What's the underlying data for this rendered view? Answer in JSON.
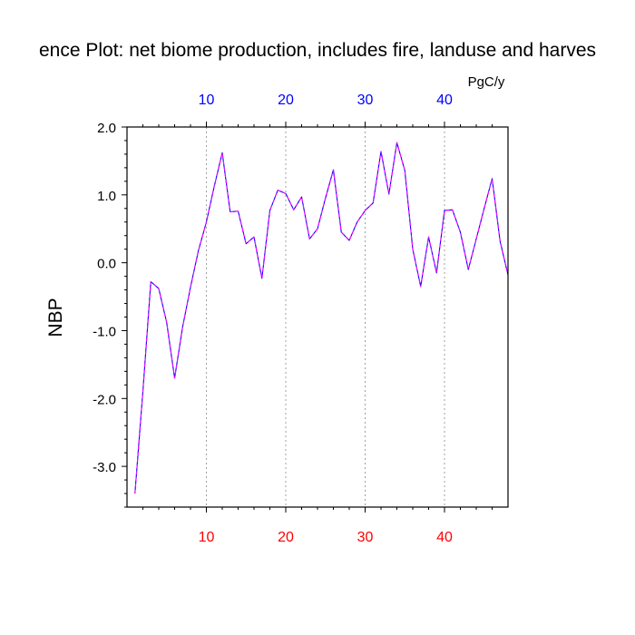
{
  "chart_data": {
    "type": "line",
    "title": "ence Plot: net biome production, includes fire, landuse and harves",
    "units_label": "PgC/y",
    "ylabel": "NBP",
    "xlabel": "",
    "xlim": [
      0,
      48
    ],
    "ylim": [
      -3.6,
      2.0
    ],
    "x_ticks": [
      10,
      20,
      30,
      40
    ],
    "x_tick_labels": [
      "10",
      "20",
      "30",
      "40"
    ],
    "x_top_ticks": [
      10,
      20,
      30,
      40
    ],
    "x_top_tick_labels": [
      "10",
      "20",
      "30",
      "40"
    ],
    "y_ticks": [
      2.0,
      1.0,
      0.0,
      -1.0,
      -2.0,
      -3.0
    ],
    "y_tick_labels": [
      "2.0",
      "1.0",
      "0.0",
      "-1.0",
      "-2.0",
      "-3.0"
    ],
    "grid": "vertical dotted at major x ticks",
    "colors": {
      "bottom_tick_labels": "#ff0000",
      "top_tick_labels": "#0000ff",
      "series_line": "#0000ff",
      "series_dash": "#ff00ff",
      "grid": "#a0a0a0",
      "frame": "#000000"
    },
    "series": [
      {
        "x": [
          1,
          2,
          3,
          4,
          5,
          6,
          7,
          8,
          9,
          10,
          11,
          12,
          13,
          14,
          15,
          16,
          17,
          18,
          19,
          20,
          21,
          22,
          23,
          24,
          25,
          26,
          27,
          28,
          29,
          30,
          31,
          32,
          33,
          34,
          35,
          36,
          37,
          38,
          39,
          40,
          41,
          42,
          43,
          44,
          45,
          46,
          47,
          48
        ],
        "values": [
          -3.4,
          -1.9,
          -0.28,
          -0.38,
          -0.88,
          -1.7,
          -0.95,
          -0.36,
          0.18,
          0.6,
          1.13,
          1.62,
          0.75,
          0.76,
          0.28,
          0.38,
          -0.23,
          0.77,
          1.07,
          1.02,
          0.78,
          0.97,
          0.35,
          0.5,
          0.95,
          1.37,
          0.45,
          0.33,
          0.6,
          0.77,
          0.88,
          1.64,
          1.01,
          1.77,
          1.36,
          0.2,
          -0.35,
          0.38,
          -0.15,
          0.77,
          0.78,
          0.45,
          -0.1,
          0.35,
          0.8,
          1.24,
          0.32,
          -0.18
        ]
      }
    ]
  }
}
